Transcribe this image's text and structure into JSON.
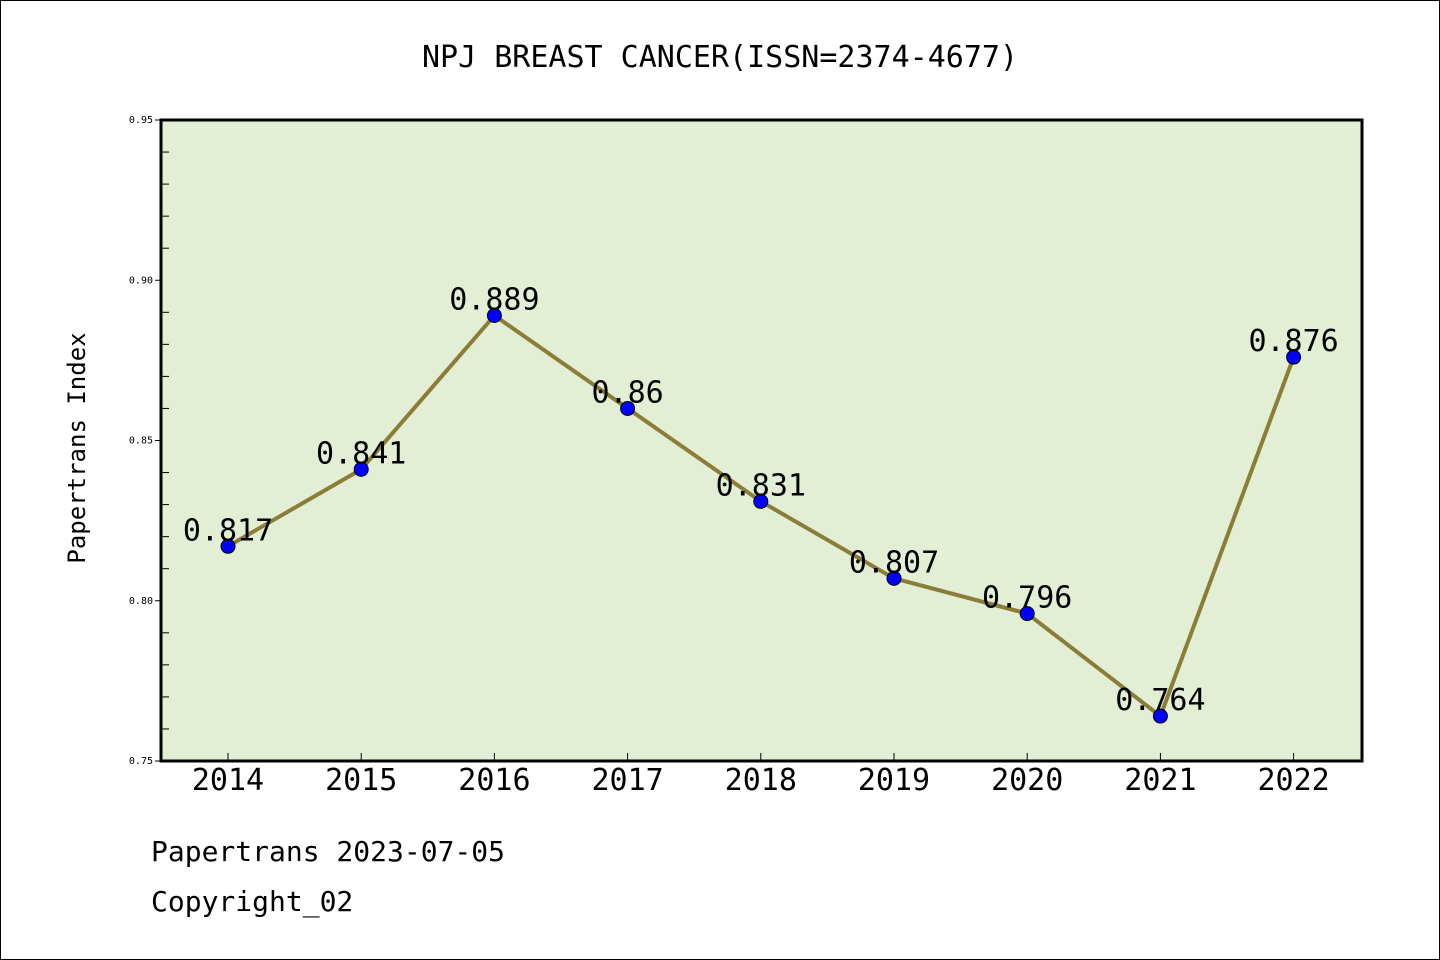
{
  "chart_data": {
    "type": "line",
    "title": "NPJ BREAST CANCER(ISSN=2374-4677)",
    "xlabel": "",
    "ylabel": "Papertrans Index",
    "categories": [
      "2014",
      "2015",
      "2016",
      "2017",
      "2018",
      "2019",
      "2020",
      "2021",
      "2022"
    ],
    "series": [
      {
        "values": [
          0.817,
          0.841,
          0.889,
          0.86,
          0.831,
          0.807,
          0.796,
          0.764,
          0.876
        ],
        "labels": [
          "0.817",
          "0.841",
          "0.889",
          "0.86",
          "0.831",
          "0.807",
          "0.796",
          "0.764",
          "0.876"
        ]
      }
    ],
    "ylim": [
      0.75,
      0.95
    ],
    "yticks": [
      "0.75",
      "0.80",
      "0.85",
      "0.90",
      "0.95"
    ],
    "grid": false,
    "legend": "none",
    "colors": {
      "plot_background": "#e2efd4",
      "line": "#8b7d37",
      "marker": "#0000ff"
    }
  },
  "footer": {
    "line1": "Papertrans 2023-07-05",
    "line2": "Copyright_02"
  }
}
